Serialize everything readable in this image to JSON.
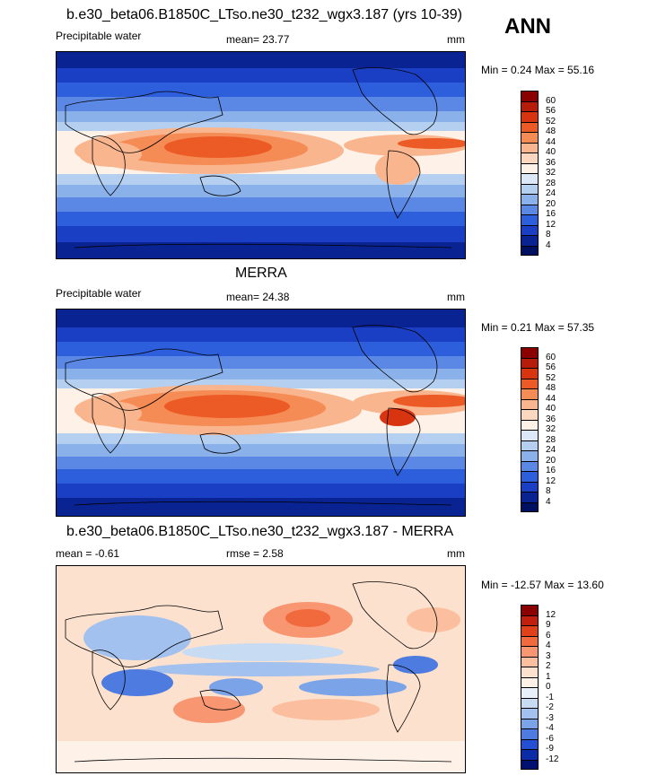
{
  "season": "ANN",
  "panels": [
    {
      "title": "b.e30_beta06.B1850C_LTso.ne30_t232_wgx3.187 (yrs 10-39)",
      "left_label": "Precipitable water",
      "center_label": "mean=  23.77",
      "units": "mm",
      "minmax": "Min =   0.24 Max =   55.16",
      "levels": [
        "60",
        "56",
        "52",
        "48",
        "44",
        "40",
        "36",
        "32",
        "28",
        "24",
        "20",
        "16",
        "12",
        "8",
        "4"
      ]
    },
    {
      "title": "MERRA",
      "left_label": "Precipitable water",
      "center_label": "mean=  24.38",
      "units": "mm",
      "minmax": "Min =   0.21 Max =   57.35",
      "levels": [
        "60",
        "56",
        "52",
        "48",
        "44",
        "40",
        "36",
        "32",
        "28",
        "24",
        "20",
        "16",
        "12",
        "8",
        "4"
      ]
    },
    {
      "title": "b.e30_beta06.B1850C_LTso.ne30_t232_wgx3.187 - MERRA",
      "left_label": "mean =  -0.61",
      "center_label": "rmse =   2.58",
      "units": "mm",
      "minmax": "Min = -12.57 Max =   13.60",
      "levels": [
        "12",
        "9",
        "6",
        "4",
        "3",
        "2",
        "1",
        "0",
        "-1",
        "-2",
        "-3",
        "-4",
        "-6",
        "-9",
        "-12"
      ]
    }
  ],
  "colors": {
    "abs_scale": [
      "#8b0000",
      "#b71c0b",
      "#d8340f",
      "#ec5a25",
      "#f58b55",
      "#f9b58e",
      "#fbd7bf",
      "#fdf1e8",
      "#dce8f7",
      "#b5cff0",
      "#8ab1ea",
      "#5b88e4",
      "#2d5fdc",
      "#1a3fc4",
      "#0a2392",
      "#001060"
    ],
    "diff_scale": [
      "#8b0000",
      "#c0200d",
      "#e0401a",
      "#f06a3d",
      "#f79670",
      "#fbbf9f",
      "#fde1cf",
      "#fdf1e8",
      "#e8f0fa",
      "#c7dbf3",
      "#a2c1ee",
      "#7ba3e8",
      "#4d7be0",
      "#2550d3",
      "#0c2ba6",
      "#001070"
    ]
  }
}
